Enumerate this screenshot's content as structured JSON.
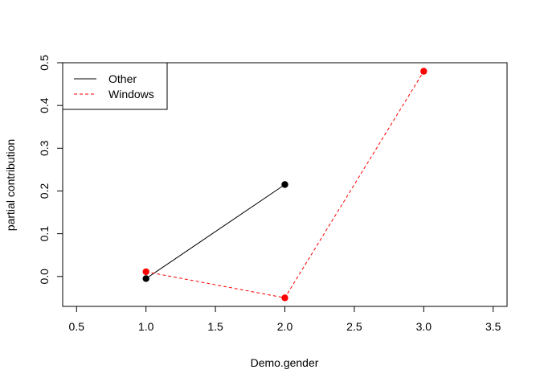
{
  "chart_data": {
    "type": "line",
    "title": "",
    "xlabel": "Demo.gender",
    "ylabel": "partial contribution",
    "xlim": [
      0.4,
      3.6
    ],
    "ylim": [
      -0.07,
      0.5
    ],
    "x_ticks": [
      0.5,
      1.0,
      1.5,
      2.0,
      2.5,
      3.0,
      3.5
    ],
    "x_tick_labels": [
      "0.5",
      "1.0",
      "1.5",
      "2.0",
      "2.5",
      "3.0",
      "3.5"
    ],
    "y_ticks": [
      0.0,
      0.1,
      0.2,
      0.3,
      0.4,
      0.5
    ],
    "y_tick_labels": [
      "0.0",
      "0.1",
      "0.2",
      "0.3",
      "0.4",
      "0.5"
    ],
    "legend_position": "top-left",
    "series": [
      {
        "name": "Other",
        "color": "#000000",
        "line_style": "solid",
        "x": [
          1,
          2
        ],
        "values": [
          -0.005,
          0.215
        ]
      },
      {
        "name": "Windows",
        "color": "#ff0000",
        "line_style": "dashed",
        "x": [
          1,
          2,
          3
        ],
        "values": [
          0.011,
          -0.05,
          0.48
        ]
      }
    ]
  }
}
